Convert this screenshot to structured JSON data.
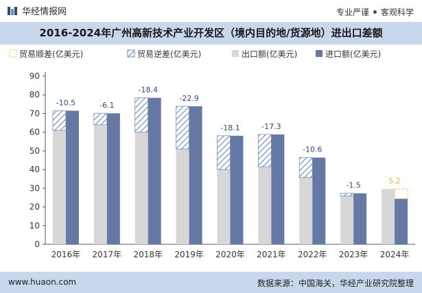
{
  "header": {
    "brand": "华经情报网",
    "tagline_left": "专业严谨",
    "tagline_right": "客观科学"
  },
  "title": "2016-2024年广州高新技术产业开发区（境内目的地/货源地）进出口差额",
  "footer": {
    "url": "www.huaon.com",
    "source": "数据来源：中国海关，华经产业研究院整理"
  },
  "colors": {
    "export": "#d7d7d7",
    "import": "#6679a4",
    "deficit_stripe": "#6f8fb9",
    "surplus_border": "#f3c44f",
    "surplus_label": "#e3b431",
    "balance_label": "#2e4a78",
    "bar_band": "#c8d7ec"
  },
  "chart_data": {
    "type": "bar",
    "categories": [
      "2016年",
      "2017年",
      "2018年",
      "2019年",
      "2020年",
      "2021年",
      "2022年",
      "2023年",
      "2024年"
    ],
    "legend": [
      "贸易顺差(亿美元)",
      "贸易逆差(亿美元)",
      "出口额(亿美元)",
      "进口额(亿美元)"
    ],
    "series": [
      {
        "name": "出口额(亿美元)",
        "values": [
          61,
          64,
          60,
          51,
          40,
          41.5,
          35.8,
          25.8,
          29.6
        ]
      },
      {
        "name": "进口额(亿美元)",
        "values": [
          71.5,
          70.1,
          78.4,
          73.9,
          58.1,
          58.8,
          46.4,
          27.3,
          24.4
        ]
      }
    ],
    "balance": [
      -10.5,
      -6.1,
      -18.4,
      -22.9,
      -18.1,
      -17.3,
      -10.6,
      -1.5,
      5.2
    ],
    "balance_labels": [
      "-10.5",
      "-6.1",
      "-18.4",
      "-22.9",
      "-18.1",
      "-17.3",
      "-10.6",
      "-1.5",
      "5.2"
    ],
    "yticks": [
      "0",
      "10",
      "20",
      "30",
      "40",
      "50",
      "60",
      "70",
      "80",
      "90"
    ],
    "ylim": [
      0,
      90
    ]
  }
}
